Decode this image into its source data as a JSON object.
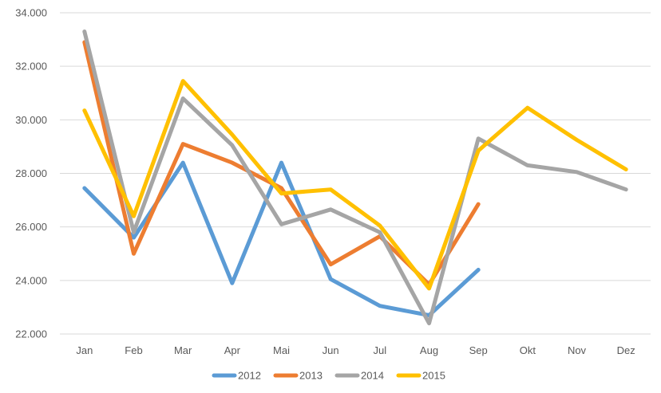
{
  "chart_data": {
    "type": "line",
    "title": "",
    "xlabel": "",
    "ylabel": "",
    "categories": [
      "Jan",
      "Feb",
      "Mar",
      "Apr",
      "Mai",
      "Jun",
      "Jul",
      "Aug",
      "Sep",
      "Okt",
      "Nov",
      "Dez"
    ],
    "ylim": [
      22000,
      34000
    ],
    "yticks": [
      22000,
      24000,
      26000,
      28000,
      30000,
      32000,
      34000
    ],
    "ytick_labels": [
      "22.000",
      "24.000",
      "26.000",
      "28.000",
      "30.000",
      "32.000",
      "34.000"
    ],
    "grid": "horizontal",
    "legend_position": "bottom",
    "series": [
      {
        "name": "2012",
        "color": "#5B9BD5",
        "values": [
          27450,
          25600,
          28400,
          23900,
          28400,
          24050,
          23050,
          22700,
          24400,
          null,
          null,
          null
        ]
      },
      {
        "name": "2013",
        "color": "#ED7D31",
        "values": [
          32900,
          25000,
          29100,
          28400,
          27450,
          24600,
          25650,
          23850,
          26850,
          null,
          null,
          null
        ]
      },
      {
        "name": "2014",
        "color": "#A5A5A5",
        "values": [
          33300,
          25800,
          30800,
          29050,
          26100,
          26650,
          25800,
          22400,
          29300,
          28300,
          28050,
          27400
        ]
      },
      {
        "name": "2015",
        "color": "#FFC000",
        "values": [
          30350,
          26400,
          31450,
          29450,
          27250,
          27400,
          26050,
          23700,
          28850,
          30450,
          29250,
          28150
        ]
      }
    ]
  }
}
